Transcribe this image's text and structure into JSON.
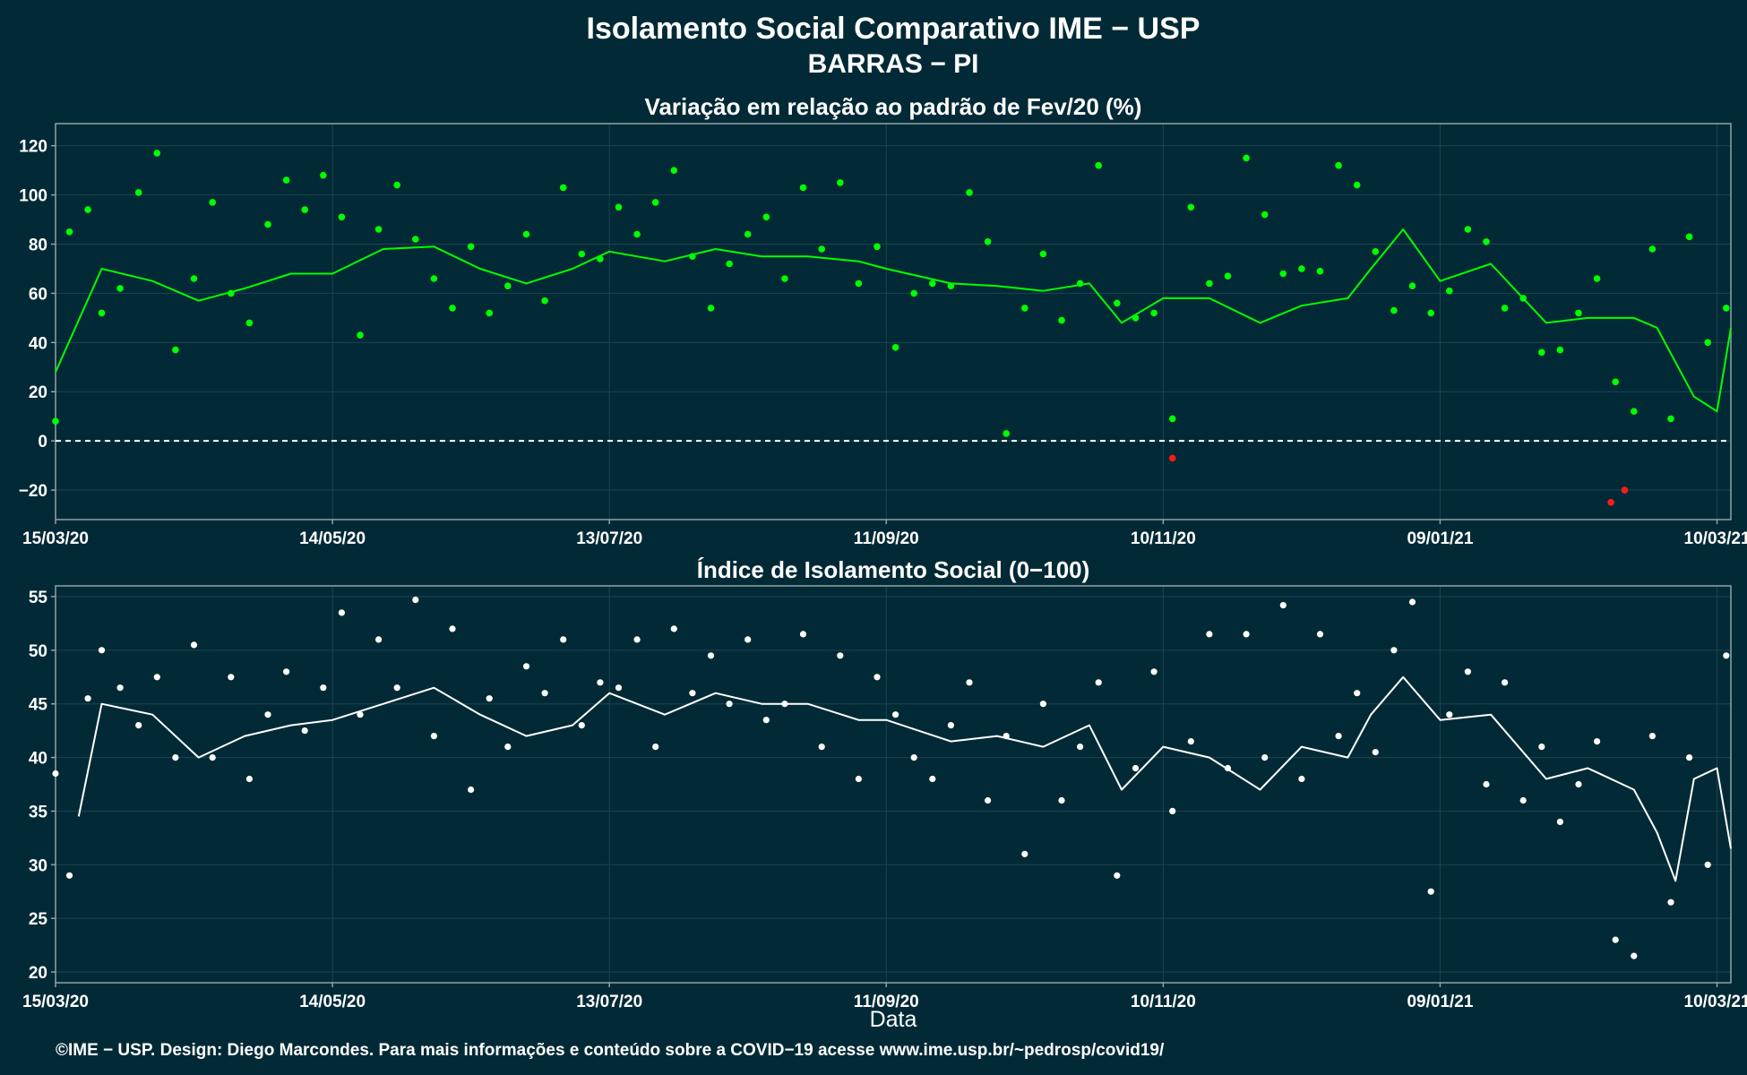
{
  "title": "Isolamento Social Comparativo IME − USP",
  "subtitle": "BARRAS − PI",
  "xlabel": "Data",
  "caption": "©IME − USP. Design: Diego Marcondes. Para mais informações e conteúdo sobre a COVID−19 acesse www.ime.usp.br/~pedrosp/covid19/",
  "colors": {
    "background": "#022a36",
    "panel_border": "#8fa3aa",
    "grid": "#1d4450",
    "top_points": "#00ff00",
    "top_negative": "#ff1a1a",
    "top_line": "#00ff00",
    "bottom_points": "#ffffff",
    "bottom_line": "#ffffff",
    "zero_line": "#ffffff"
  },
  "chart_data": [
    {
      "type": "scatter",
      "title": "Variação em relação ao padrão de Fev/20 (%)",
      "xlabel": "",
      "ylabel": "",
      "x_ticks": [
        "15/03/20",
        "14/05/20",
        "13/07/20",
        "11/09/20",
        "10/11/20",
        "09/01/21",
        "10/03/21"
      ],
      "x_range": [
        "15/03/20",
        "13/03/21"
      ],
      "y_ticks": [
        -20,
        0,
        20,
        40,
        60,
        80,
        100,
        120
      ],
      "ylim": [
        -32,
        129
      ],
      "grid": true,
      "reference_line": 0,
      "series": [
        {
          "x": [
            "15/03/20",
            "25/03/20",
            "05/04/20",
            "15/04/20",
            "25/04/20",
            "05/05/20",
            "14/05/20",
            "25/05/20",
            "05/06/20",
            "15/06/20",
            "25/06/20",
            "05/07/20",
            "13/07/20",
            "25/07/20",
            "05/08/20",
            "15/08/20",
            "25/08/20",
            "05/09/20",
            "11/09/20",
            "25/09/20",
            "05/10/20",
            "15/10/20",
            "25/10/20",
            "01/11/20",
            "10/11/20",
            "20/11/20",
            "01/12/20",
            "10/12/20",
            "20/12/20",
            "25/12/20",
            "01/01/21",
            "09/01/21",
            "20/01/21",
            "01/02/21",
            "10/02/21",
            "20/02/21",
            "25/02/21",
            "01/03/21",
            "05/03/21",
            "10/03/21",
            "13/03/21"
          ],
          "y": [
            28,
            70,
            65,
            57,
            62,
            68,
            68,
            78,
            79,
            70,
            64,
            70,
            77,
            73,
            78,
            75,
            75,
            73,
            70,
            64,
            63,
            61,
            64,
            48,
            58,
            58,
            48,
            55,
            58,
            70,
            86,
            65,
            72,
            48,
            50,
            50,
            46,
            32,
            18,
            12,
            46
          ]
        }
      ],
      "points": {
        "x": [
          "15/03/20",
          "18/03/20",
          "22/03/20",
          "25/03/20",
          "29/03/20",
          "02/04/20",
          "06/04/20",
          "10/04/20",
          "14/04/20",
          "18/04/20",
          "22/04/20",
          "26/04/20",
          "30/04/20",
          "04/05/20",
          "08/05/20",
          "12/05/20",
          "16/05/20",
          "20/05/20",
          "24/05/20",
          "28/05/20",
          "01/06/20",
          "05/06/20",
          "09/06/20",
          "13/06/20",
          "17/06/20",
          "21/06/20",
          "25/06/20",
          "29/06/20",
          "03/07/20",
          "07/07/20",
          "11/07/20",
          "15/07/20",
          "19/07/20",
          "23/07/20",
          "27/07/20",
          "31/07/20",
          "04/08/20",
          "08/08/20",
          "12/08/20",
          "16/08/20",
          "20/08/20",
          "24/08/20",
          "28/08/20",
          "01/09/20",
          "05/09/20",
          "09/09/20",
          "13/09/20",
          "17/09/20",
          "21/09/20",
          "25/09/20",
          "29/09/20",
          "03/10/20",
          "07/10/20",
          "11/10/20",
          "15/10/20",
          "19/10/20",
          "23/10/20",
          "27/10/20",
          "31/10/20",
          "04/11/20",
          "08/11/20",
          "12/11/20",
          "16/11/20",
          "20/11/20",
          "24/11/20",
          "28/11/20",
          "02/12/20",
          "06/12/20",
          "10/12/20",
          "14/12/20",
          "18/12/20",
          "22/12/20",
          "26/12/20",
          "30/12/20",
          "03/01/21",
          "07/01/21",
          "11/01/21",
          "15/01/21",
          "19/01/21",
          "23/01/21",
          "27/01/21",
          "31/01/21",
          "04/02/21",
          "08/02/21",
          "12/02/21",
          "16/02/21",
          "20/02/21",
          "24/02/21",
          "28/02/21",
          "04/03/21",
          "08/03/21",
          "12/03/21"
        ],
        "y": [
          8,
          85,
          94,
          52,
          62,
          101,
          117,
          37,
          66,
          97,
          60,
          48,
          88,
          106,
          94,
          108,
          91,
          43,
          86,
          104,
          82,
          66,
          54,
          79,
          52,
          63,
          84,
          57,
          103,
          76,
          74,
          95,
          84,
          97,
          110,
          75,
          54,
          72,
          84,
          91,
          66,
          103,
          78,
          105,
          64,
          79,
          38,
          60,
          64,
          63,
          101,
          81,
          3,
          54,
          76,
          49,
          64,
          112,
          56,
          50,
          52,
          9,
          95,
          64,
          67,
          115,
          92,
          68,
          70,
          69,
          112,
          104,
          77,
          53,
          63,
          52,
          61,
          86,
          81,
          54,
          58,
          36,
          37,
          52,
          66,
          24,
          12,
          78,
          9,
          83,
          40,
          54
        ],
        "negative_x": [
          "12/11/20",
          "15/02/21",
          "18/02/21"
        ],
        "negative_y": [
          -7,
          -25,
          -20
        ]
      }
    },
    {
      "type": "scatter",
      "title": "Índice de Isolamento Social (0−100)",
      "xlabel": "Data",
      "ylabel": "",
      "x_ticks": [
        "15/03/20",
        "14/05/20",
        "13/07/20",
        "11/09/20",
        "10/11/20",
        "09/01/21",
        "10/03/21"
      ],
      "x_range": [
        "15/03/20",
        "13/03/21"
      ],
      "y_ticks": [
        20,
        25,
        30,
        35,
        40,
        45,
        50,
        55
      ],
      "ylim": [
        19,
        56
      ],
      "grid": true,
      "series": [
        {
          "x": [
            "20/03/20",
            "25/03/20",
            "05/04/20",
            "15/04/20",
            "25/04/20",
            "05/05/20",
            "14/05/20",
            "25/05/20",
            "05/06/20",
            "15/06/20",
            "25/06/20",
            "05/07/20",
            "13/07/20",
            "25/07/20",
            "05/08/20",
            "15/08/20",
            "25/08/20",
            "05/09/20",
            "11/09/20",
            "25/09/20",
            "05/10/20",
            "15/10/20",
            "25/10/20",
            "01/11/20",
            "10/11/20",
            "20/11/20",
            "01/12/20",
            "10/12/20",
            "20/12/20",
            "25/12/20",
            "01/01/21",
            "09/01/21",
            "20/01/21",
            "01/02/21",
            "10/02/21",
            "20/02/21",
            "25/02/21",
            "01/03/21",
            "05/03/21",
            "10/03/21",
            "13/03/21"
          ],
          "y": [
            34.5,
            45,
            44,
            40,
            42,
            43,
            43.5,
            45,
            46.5,
            44,
            42,
            43,
            46,
            44,
            46,
            45,
            45,
            43.5,
            43.5,
            41.5,
            42,
            41,
            43,
            37,
            41,
            40,
            37,
            41,
            40,
            44,
            47.5,
            43.5,
            44,
            38,
            39,
            37,
            33,
            28.5,
            38,
            39,
            31.5
          ]
        }
      ],
      "points": {
        "x": [
          "15/03/20",
          "18/03/20",
          "22/03/20",
          "25/03/20",
          "29/03/20",
          "02/04/20",
          "06/04/20",
          "10/04/20",
          "14/04/20",
          "18/04/20",
          "22/04/20",
          "26/04/20",
          "30/04/20",
          "04/05/20",
          "08/05/20",
          "12/05/20",
          "16/05/20",
          "20/05/20",
          "24/05/20",
          "28/05/20",
          "01/06/20",
          "05/06/20",
          "09/06/20",
          "13/06/20",
          "17/06/20",
          "21/06/20",
          "25/06/20",
          "29/06/20",
          "03/07/20",
          "07/07/20",
          "11/07/20",
          "15/07/20",
          "19/07/20",
          "23/07/20",
          "27/07/20",
          "31/07/20",
          "04/08/20",
          "08/08/20",
          "12/08/20",
          "16/08/20",
          "20/08/20",
          "24/08/20",
          "28/08/20",
          "01/09/20",
          "05/09/20",
          "09/09/20",
          "13/09/20",
          "17/09/20",
          "21/09/20",
          "25/09/20",
          "29/09/20",
          "03/10/20",
          "07/10/20",
          "11/10/20",
          "15/10/20",
          "19/10/20",
          "23/10/20",
          "27/10/20",
          "31/10/20",
          "04/11/20",
          "08/11/20",
          "12/11/20",
          "16/11/20",
          "20/11/20",
          "24/11/20",
          "28/11/20",
          "02/12/20",
          "06/12/20",
          "10/12/20",
          "14/12/20",
          "18/12/20",
          "22/12/20",
          "26/12/20",
          "30/12/20",
          "03/01/21",
          "07/01/21",
          "11/01/21",
          "15/01/21",
          "19/01/21",
          "23/01/21",
          "27/01/21",
          "31/01/21",
          "04/02/21",
          "08/02/21",
          "12/02/21",
          "16/02/21",
          "20/02/21",
          "24/02/21",
          "28/02/21",
          "04/03/21",
          "08/03/21",
          "12/03/21"
        ],
        "y": [
          38.5,
          29,
          45.5,
          50,
          46.5,
          43,
          47.5,
          40,
          50.5,
          40,
          47.5,
          38,
          44,
          48,
          42.5,
          46.5,
          53.5,
          44,
          51,
          46.5,
          54.7,
          42,
          52,
          37,
          45.5,
          41,
          48.5,
          46,
          51,
          43,
          47,
          46.5,
          51,
          41,
          52,
          46,
          49.5,
          45,
          51,
          43.5,
          45,
          51.5,
          41,
          49.5,
          38,
          47.5,
          44,
          40,
          38,
          43,
          47,
          36,
          42,
          31,
          45,
          36,
          41,
          47,
          29,
          39,
          48,
          35,
          41.5,
          51.5,
          39,
          51.5,
          40,
          54.2,
          38,
          51.5,
          42,
          46,
          40.5,
          50,
          54.5,
          27.5,
          44,
          48,
          37.5,
          47,
          36,
          41,
          34,
          37.5,
          41.5,
          23,
          21.5,
          42,
          26.5,
          40,
          30,
          49.5
        ]
      }
    }
  ]
}
